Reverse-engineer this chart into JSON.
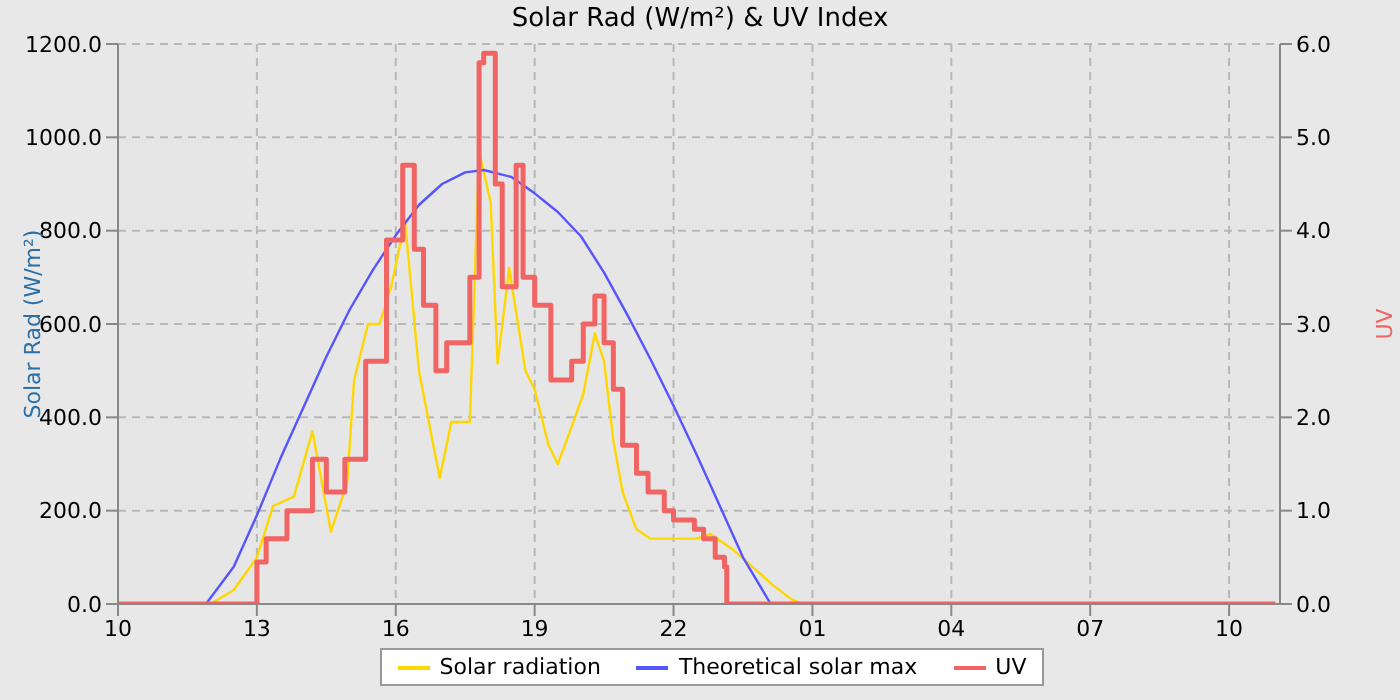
{
  "chart_data": {
    "type": "line",
    "title": "Solar Rad (W/m²) &  UV Index",
    "ylabel": "Solar Rad (W/m²)",
    "y2label": "UV",
    "xlim": [
      "--01-01T10:00",
      "--01-02T11:06"
    ],
    "xticks": [
      {
        "value": "--01-01T10:00",
        "label": "10"
      },
      {
        "value": "--01-01T13:00",
        "label": "13"
      },
      {
        "value": "--01-01T16:00",
        "label": "16"
      },
      {
        "value": "--01-01T19:00",
        "label": "19"
      },
      {
        "value": "--01-01T22:00",
        "label": "22"
      },
      {
        "value": "--01-02T01:00",
        "label": "01"
      },
      {
        "value": "--01-02T04:00",
        "label": "04"
      },
      {
        "value": "--01-02T07:00",
        "label": "07"
      },
      {
        "value": "--01-02T10:00",
        "label": "10"
      }
    ],
    "ylim": [
      0,
      1200
    ],
    "yticks": [
      {
        "value": 0,
        "label": "0.0"
      },
      {
        "value": 200,
        "label": "200.0"
      },
      {
        "value": 400,
        "label": "400.0"
      },
      {
        "value": 600,
        "label": "600.0"
      },
      {
        "value": 800,
        "label": "800.0"
      },
      {
        "value": 1000,
        "label": "1000.0"
      },
      {
        "value": 1200,
        "label": "1200.0"
      }
    ],
    "y2lim": [
      0,
      6
    ],
    "y2ticks": [
      {
        "value": 0,
        "label": "0.0"
      },
      {
        "value": 1,
        "label": "1.0"
      },
      {
        "value": 2,
        "label": "2.0"
      },
      {
        "value": 3,
        "label": "3.0"
      },
      {
        "value": 4,
        "label": "4.0"
      },
      {
        "value": 5,
        "label": "5.0"
      },
      {
        "value": 6,
        "label": "6.0"
      }
    ],
    "grid": true,
    "legend": "bottom",
    "marker": "none",
    "line_style": "solid",
    "series": [
      {
        "name": "Solar radiation",
        "color": "#ffd700",
        "x": [
          "--01-01T10:00",
          "--01-01T12:00",
          "--01-01T12:30",
          "--01-01T13:00",
          "--01-01T13:21",
          "--01-01T13:48",
          "--01-01T14:12",
          "--01-01T14:36",
          "--01-01T14:57",
          "--01-01T15:06",
          "--01-01T15:24",
          "--01-01T15:39",
          "--01-01T15:54",
          "--01-01T16:12",
          "--01-01T16:30",
          "--01-01T16:57",
          "--01-01T17:12",
          "--01-01T17:36",
          "--01-01T17:48",
          "--01-01T18:03",
          "--01-01T18:12",
          "--01-01T18:27",
          "--01-01T18:48",
          "--01-01T19:00",
          "--01-01T19:18",
          "--01-01T19:30",
          "--01-01T19:48",
          "--01-01T20:03",
          "--01-01T20:18",
          "--01-01T20:30",
          "--01-01T20:42",
          "--01-01T20:54",
          "--01-01T21:12",
          "--01-01T21:30",
          "--01-01T22:30",
          "--01-01T22:48",
          "--01-01T23:18",
          "--01-01T23:42",
          "--01-02T00:09",
          "--01-02T00:33",
          "--01-02T00:48",
          "--01-02T11:00"
        ],
        "values": [
          0,
          0,
          30,
          100,
          210,
          230,
          370,
          155,
          260,
          480,
          600,
          600,
          680,
          820,
          500,
          270,
          390,
          390,
          970,
          860,
          515,
          720,
          500,
          460,
          340,
          300,
          380,
          450,
          580,
          520,
          350,
          240,
          160,
          140,
          140,
          150,
          115,
          80,
          40,
          10,
          0,
          0
        ]
      },
      {
        "name": "Theoretical solar max",
        "color": "#5555ff",
        "x": [
          "--01-01T10:00",
          "--01-01T11:54",
          "--01-01T12:30",
          "--01-01T13:00",
          "--01-01T13:30",
          "--01-01T14:00",
          "--01-01T14:30",
          "--01-01T15:00",
          "--01-01T15:30",
          "--01-01T16:00",
          "--01-01T16:30",
          "--01-01T17:00",
          "--01-01T17:30",
          "--01-01T17:54",
          "--01-01T18:30",
          "--01-01T19:00",
          "--01-01T19:30",
          "--01-01T20:00",
          "--01-01T20:30",
          "--01-01T21:00",
          "--01-01T21:30",
          "--01-01T22:00",
          "--01-01T22:30",
          "--01-01T23:00",
          "--01-01T23:30",
          "--01-02T00:06",
          "--01-02T11:00"
        ],
        "values": [
          0,
          0,
          80,
          190,
          310,
          420,
          530,
          630,
          715,
          790,
          855,
          900,
          925,
          930,
          915,
          880,
          840,
          788,
          710,
          620,
          525,
          425,
          320,
          210,
          100,
          0,
          0
        ]
      },
      {
        "name": "UV",
        "type": "step",
        "axis": "y2",
        "color": "#f06464",
        "x": [
          "--01-01T10:00",
          "--01-01T13:00",
          "--01-01T13:12",
          "--01-01T13:39",
          "--01-01T14:12",
          "--01-01T14:30",
          "--01-01T14:54",
          "--01-01T15:21",
          "--01-01T15:48",
          "--01-01T16:09",
          "--01-01T16:24",
          "--01-01T16:36",
          "--01-01T16:52",
          "--01-01T17:06",
          "--01-01T17:24",
          "--01-01T17:36",
          "--01-01T17:48",
          "--01-01T17:54",
          "--01-01T18:00",
          "--01-01T18:09",
          "--01-01T18:18",
          "--01-01T18:36",
          "--01-01T18:45",
          "--01-01T19:00",
          "--01-01T19:21",
          "--01-01T19:48",
          "--01-01T20:03",
          "--01-01T20:18",
          "--01-01T20:30",
          "--01-01T20:42",
          "--01-01T20:54",
          "--01-01T21:12",
          "--01-01T21:27",
          "--01-01T21:48",
          "--01-01T22:00",
          "--01-01T22:27",
          "--01-01T22:39",
          "--01-01T22:54",
          "--01-01T23:06",
          "--01-01T23:09",
          "--01-02T11:00"
        ],
        "values": [
          0,
          0.45,
          0.7,
          1.0,
          1.55,
          1.2,
          1.55,
          2.6,
          3.9,
          4.7,
          3.8,
          3.2,
          2.5,
          2.8,
          2.8,
          3.5,
          5.8,
          5.9,
          5.9,
          4.5,
          3.4,
          4.7,
          3.5,
          3.2,
          2.4,
          2.6,
          3.0,
          3.3,
          2.8,
          2.3,
          1.7,
          1.4,
          1.2,
          1.0,
          0.9,
          0.8,
          0.7,
          0.5,
          0.4,
          0,
          0
        ]
      }
    ]
  }
}
